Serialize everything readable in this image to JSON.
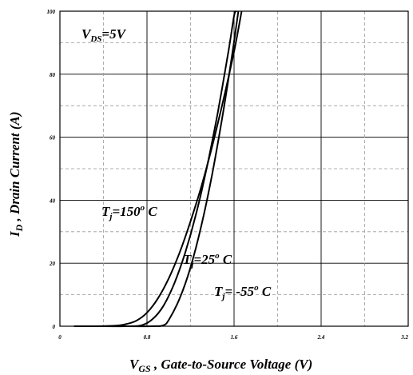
{
  "chart_data": {
    "type": "line",
    "title": "",
    "xlabel": {
      "symbol": "V",
      "subscript": "GS",
      "text": " , Gate-to-Source Voltage (V)"
    },
    "ylabel": {
      "symbol": "I",
      "subscript": "D",
      "text": " , Drain Current (A)"
    },
    "xlim": [
      0,
      3.2
    ],
    "ylim": [
      0,
      100
    ],
    "x_ticks": [
      "0",
      "0.8",
      "1.6",
      "2.4",
      "3.2"
    ],
    "y_ticks": [
      "0",
      "20",
      "40",
      "60",
      "80",
      "100"
    ],
    "grid": "solid major lines, dashed minor lines at 10 A intervals",
    "annotations": {
      "vds": {
        "symbol": "V",
        "subscript": "DS",
        "value": "=5V"
      },
      "tj150": {
        "symbol": "T",
        "subscript": "j",
        "value": "=150",
        "superscript": "o",
        "unit": " C"
      },
      "tj25": {
        "symbol": "T",
        "subscript": "j",
        "value": "=25",
        "superscript": "o",
        "unit": " C"
      },
      "tjm55": {
        "symbol": "T",
        "subscript": "j",
        "value": "= -55",
        "superscript": "o",
        "unit": " C"
      }
    },
    "series": [
      {
        "points": [
          [
            0.13,
            0
          ],
          [
            0.3,
            0
          ],
          [
            0.5,
            0.15
          ],
          [
            0.6,
            0.6
          ],
          [
            0.7,
            1.7
          ],
          [
            0.8,
            4.3
          ],
          [
            0.9,
            8.8
          ],
          [
            1.0,
            15.2
          ],
          [
            1.1,
            23.4
          ],
          [
            1.2,
            33.3
          ],
          [
            1.3,
            44.4
          ],
          [
            1.4,
            57.3
          ],
          [
            1.5,
            71.6
          ],
          [
            1.6,
            87.2
          ],
          [
            1.67,
            100
          ]
        ]
      },
      {
        "points": [
          [
            0.3,
            0
          ],
          [
            0.6,
            0
          ],
          [
            0.75,
            0.3
          ],
          [
            0.85,
            2.2
          ],
          [
            0.95,
            6.4
          ],
          [
            1.05,
            13.5
          ],
          [
            1.15,
            23.2
          ],
          [
            1.25,
            35.5
          ],
          [
            1.35,
            50.4
          ],
          [
            1.45,
            67.8
          ],
          [
            1.55,
            87.6
          ],
          [
            1.6,
            98.5
          ],
          [
            1.62,
            100
          ]
        ]
      },
      {
        "points": [
          [
            0.5,
            0
          ],
          [
            0.85,
            0
          ],
          [
            0.95,
            0.3
          ],
          [
            1.0,
            2.0
          ],
          [
            1.1,
            8.8
          ],
          [
            1.2,
            18.7
          ],
          [
            1.3,
            32.0
          ],
          [
            1.4,
            48.5
          ],
          [
            1.5,
            68.0
          ],
          [
            1.58,
            85.7
          ],
          [
            1.64,
            100
          ]
        ]
      }
    ]
  }
}
